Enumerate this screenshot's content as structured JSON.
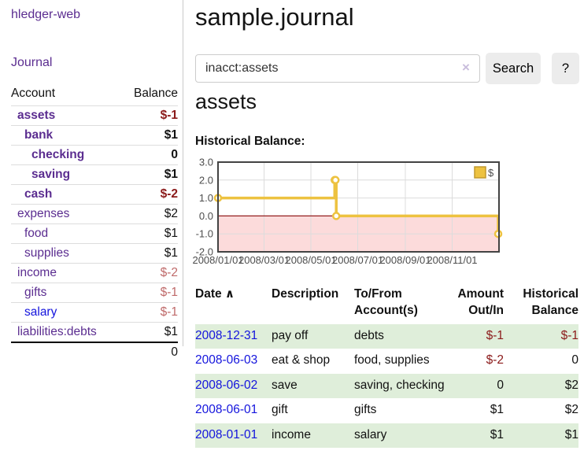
{
  "app": {
    "brand": "hledger-web",
    "nav": {
      "journal": "Journal"
    }
  },
  "sidebar": {
    "header": {
      "account": "Account",
      "balance": "Balance"
    },
    "accounts": [
      {
        "name": "assets",
        "indent": 1,
        "bold": true,
        "balance": "$-1"
      },
      {
        "name": "bank",
        "indent": 2,
        "bold": true,
        "balance": "$1"
      },
      {
        "name": "checking",
        "indent": 3,
        "bold": true,
        "balance": "0"
      },
      {
        "name": "saving",
        "indent": 3,
        "bold": true,
        "balance": "$1"
      },
      {
        "name": "cash",
        "indent": 2,
        "bold": true,
        "balance": "$-2"
      },
      {
        "name": "expenses",
        "indent": 1,
        "bold": false,
        "balance": "$2"
      },
      {
        "name": "food",
        "indent": 2,
        "bold": false,
        "balance": "$1"
      },
      {
        "name": "supplies",
        "indent": 2,
        "bold": false,
        "balance": "$1"
      },
      {
        "name": "income",
        "indent": 1,
        "bold": false,
        "balance": "$-2"
      },
      {
        "name": "gifts",
        "indent": 2,
        "bold": false,
        "balance": "$-1"
      },
      {
        "name": "salary",
        "indent": 2,
        "bold": false,
        "balance": "$-1",
        "name_color": "blue"
      },
      {
        "name": "liabilities:debts",
        "indent": 1,
        "bold": false,
        "balance": "$1"
      }
    ],
    "total": "0"
  },
  "header": {
    "title": "sample.journal"
  },
  "search": {
    "value": "inacct:assets",
    "clear_icon": "×",
    "button_label": "Search",
    "help_label": "?"
  },
  "register": {
    "heading": "assets",
    "chart_label": "Historical Balance:"
  },
  "chart_data": {
    "type": "line",
    "step": true,
    "title": "Historical Balance:",
    "legend": "$",
    "legend_position": "top-right",
    "grid": true,
    "x_range": [
      "2008-01-01",
      "2009-01-01"
    ],
    "ylim": [
      -2,
      3
    ],
    "y_ticks": [
      "3.0",
      "2.0",
      "1.0",
      "0.0",
      "-1.0",
      "-2.0"
    ],
    "x_ticks": [
      "2008/01/01",
      "2008/03/01",
      "2008/05/01",
      "2008/07/01",
      "2008/09/01",
      "2008/11/01"
    ],
    "series": [
      {
        "name": "$",
        "points": [
          [
            "2008-01-01",
            1
          ],
          [
            "2008-06-01",
            2
          ],
          [
            "2008-06-02",
            2
          ],
          [
            "2008-06-03",
            0
          ],
          [
            "2008-12-31",
            -1
          ]
        ]
      }
    ],
    "line_color": "#edc240",
    "marker_fill": "#ffffff",
    "negative_region_color": "#fcdbdb",
    "zero_line_color": "#941f1f",
    "grid_color": "#dcdcdc",
    "border_color": "#434343",
    "tick_label_color": "#4d4d4d"
  },
  "table": {
    "headers": {
      "date": "Date",
      "sort_asc_icon": "∧",
      "description": "Description",
      "accounts": "To/From Account(s)",
      "amount": "Amount Out/In",
      "balance": "Historical Balance"
    },
    "rows": [
      {
        "date": "2008-12-31",
        "description": "pay off",
        "accounts": "debts",
        "amount": "$-1",
        "balance": "$-1",
        "highlight": true
      },
      {
        "date": "2008-06-03",
        "description": "eat & shop",
        "accounts": "food, supplies",
        "amount": "$-2",
        "balance": "0",
        "highlight": false
      },
      {
        "date": "2008-06-02",
        "description": "save",
        "accounts": "saving, checking",
        "amount": "0",
        "balance": "$2",
        "highlight": true
      },
      {
        "date": "2008-06-01",
        "description": "gift",
        "accounts": "gifts",
        "amount": "$1",
        "balance": "$2",
        "highlight": false
      },
      {
        "date": "2008-01-01",
        "description": "income",
        "accounts": "salary",
        "amount": "$1",
        "balance": "$1",
        "highlight": true
      }
    ]
  }
}
